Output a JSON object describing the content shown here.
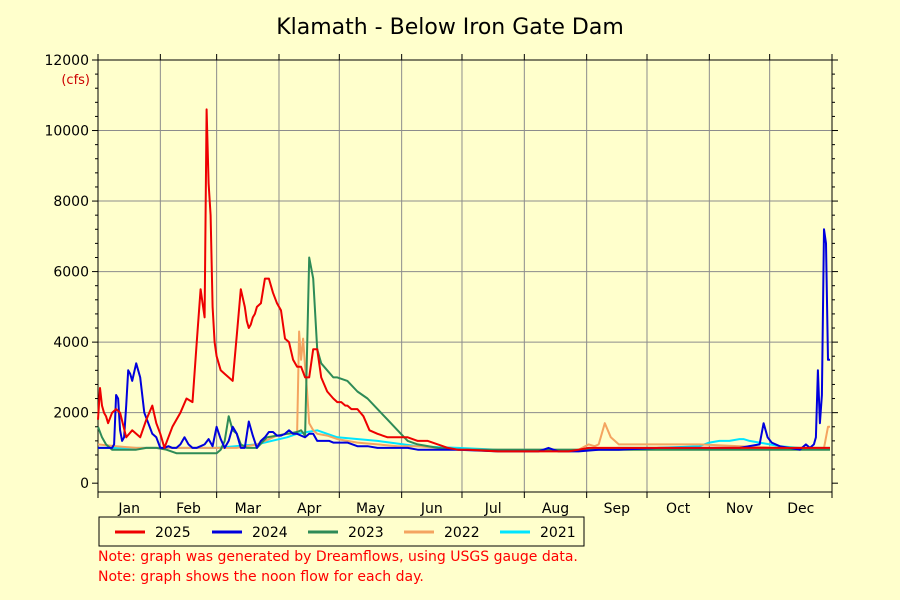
{
  "chart_data": {
    "type": "line",
    "title": "Klamath - Below Iron Gate Dam",
    "ylabel": "(cfs)",
    "xlabel": "",
    "ylim": [
      0,
      12000
    ],
    "yticks": [
      0,
      2000,
      4000,
      6000,
      8000,
      10000,
      12000
    ],
    "xlim": [
      1,
      366
    ],
    "x_unit": "day of year",
    "month_labels": [
      "Jan",
      "Feb",
      "Mar",
      "Apr",
      "May",
      "Jun",
      "Jul",
      "Aug",
      "Sep",
      "Oct",
      "Nov",
      "Dec"
    ],
    "grid": true,
    "legend_position": "bottom",
    "series": [
      {
        "name": "2025",
        "color": "#ee0000",
        "x": [
          1,
          2,
          3,
          4,
          5,
          6,
          8,
          10,
          12,
          15,
          18,
          20,
          22,
          25,
          28,
          30,
          32,
          33,
          34,
          36,
          38,
          40,
          42,
          45,
          48,
          50,
          52,
          54,
          55,
          56,
          57,
          58,
          59,
          60,
          62,
          64,
          66,
          68,
          70,
          72,
          74,
          75,
          76,
          77,
          78,
          79,
          80,
          82,
          84,
          86,
          88,
          90,
          92,
          94,
          96,
          98,
          100,
          102,
          104,
          106,
          108,
          110,
          112,
          115,
          118,
          120,
          122,
          124,
          125,
          127,
          130,
          133,
          136,
          140,
          145,
          150,
          155,
          160,
          165,
          170,
          175,
          180,
          185,
          200,
          220,
          235,
          240,
          245,
          250,
          260,
          280,
          300,
          320,
          340,
          350,
          355,
          358,
          360,
          362,
          364,
          365
        ],
        "y": [
          1800,
          2700,
          2200,
          2000,
          1900,
          1700,
          2000,
          2100,
          2000,
          1300,
          1500,
          1400,
          1300,
          1800,
          2200,
          1700,
          1400,
          1200,
          1000,
          1300,
          1600,
          1800,
          2000,
          2400,
          2300,
          3900,
          5500,
          4700,
          10600,
          8500,
          7600,
          5000,
          4000,
          3600,
          3200,
          3100,
          3000,
          2900,
          4200,
          5500,
          5000,
          4600,
          4400,
          4500,
          4700,
          4800,
          5000,
          5100,
          5800,
          5800,
          5400,
          5100,
          4900,
          4100,
          4000,
          3500,
          3300,
          3300,
          3000,
          3000,
          3800,
          3800,
          3000,
          2600,
          2400,
          2300,
          2300,
          2200,
          2200,
          2100,
          2100,
          1900,
          1500,
          1400,
          1300,
          1300,
          1300,
          1200,
          1200,
          1100,
          1000,
          950,
          950,
          900,
          900,
          900,
          950,
          1000,
          1000,
          1000,
          1000,
          1000,
          1000,
          1000,
          1000,
          1000,
          1000,
          1000,
          1000,
          1000,
          1000
        ]
      },
      {
        "name": "2024",
        "color": "#0000dd",
        "x": [
          1,
          5,
          8,
          9,
          10,
          11,
          12,
          13,
          14,
          15,
          16,
          17,
          18,
          20,
          22,
          24,
          26,
          28,
          30,
          32,
          34,
          36,
          38,
          40,
          42,
          44,
          46,
          48,
          50,
          52,
          54,
          56,
          58,
          60,
          62,
          64,
          66,
          68,
          70,
          72,
          74,
          76,
          78,
          80,
          82,
          84,
          86,
          88,
          90,
          92,
          94,
          96,
          98,
          100,
          102,
          104,
          106,
          108,
          110,
          112,
          114,
          116,
          118,
          120,
          125,
          130,
          135,
          140,
          150,
          155,
          160,
          180,
          200,
          210,
          220,
          225,
          230,
          240,
          250,
          260,
          280,
          300,
          320,
          330,
          332,
          334,
          336,
          340,
          350,
          353,
          355,
          357,
          358,
          359,
          360,
          361,
          362,
          363,
          364,
          365
        ],
        "y": [
          1000,
          1000,
          1000,
          1100,
          2500,
          2400,
          1500,
          1200,
          1300,
          2200,
          3200,
          3100,
          2900,
          3400,
          3000,
          2000,
          1700,
          1400,
          1300,
          1000,
          1000,
          1050,
          1000,
          1000,
          1100,
          1300,
          1100,
          1000,
          1000,
          1050,
          1100,
          1250,
          1050,
          1600,
          1250,
          1000,
          1200,
          1600,
          1400,
          1000,
          1000,
          1750,
          1350,
          1000,
          1200,
          1300,
          1450,
          1450,
          1350,
          1350,
          1400,
          1500,
          1400,
          1400,
          1350,
          1300,
          1400,
          1400,
          1200,
          1200,
          1200,
          1200,
          1150,
          1150,
          1150,
          1050,
          1050,
          1000,
          1000,
          1000,
          950,
          950,
          900,
          900,
          900,
          1000,
          900,
          900,
          950,
          950,
          1000,
          1000,
          1000,
          1100,
          1700,
          1300,
          1150,
          1050,
          950,
          1100,
          1000,
          1100,
          1300,
          3200,
          1700,
          2500,
          7200,
          6800,
          3500,
          3500
        ]
      },
      {
        "name": "2023",
        "color": "#2e8b57",
        "x": [
          1,
          3,
          5,
          8,
          10,
          15,
          20,
          25,
          30,
          35,
          40,
          45,
          50,
          55,
          60,
          62,
          64,
          66,
          68,
          70,
          72,
          75,
          80,
          85,
          90,
          95,
          100,
          102,
          104,
          106,
          108,
          110,
          112,
          115,
          118,
          120,
          125,
          130,
          135,
          140,
          145,
          150,
          155,
          160,
          170,
          180,
          200,
          220,
          240,
          260,
          280,
          300,
          320,
          340,
          355,
          360,
          365
        ],
        "y": [
          1600,
          1300,
          1100,
          950,
          950,
          950,
          950,
          1000,
          1000,
          950,
          850,
          850,
          850,
          850,
          850,
          950,
          1200,
          1900,
          1500,
          1400,
          1100,
          1000,
          1000,
          1300,
          1350,
          1400,
          1450,
          1500,
          1350,
          6400,
          5800,
          3800,
          3400,
          3200,
          3000,
          3000,
          2900,
          2600,
          2400,
          2100,
          1800,
          1500,
          1200,
          1100,
          1000,
          950,
          950,
          950,
          950,
          950,
          950,
          950,
          950,
          950,
          950,
          950,
          950
        ]
      },
      {
        "name": "2022",
        "color": "#f4a460",
        "x": [
          1,
          10,
          20,
          30,
          40,
          50,
          60,
          70,
          80,
          90,
          95,
          98,
          100,
          101,
          102,
          103,
          104,
          105,
          106,
          108,
          110,
          115,
          120,
          130,
          140,
          150,
          160,
          170,
          180,
          200,
          220,
          240,
          245,
          248,
          250,
          253,
          256,
          260,
          280,
          300,
          320,
          340,
          355,
          360,
          362,
          364,
          365
        ],
        "y": [
          1100,
          1050,
          1000,
          1000,
          1000,
          1000,
          1000,
          1000,
          1100,
          1350,
          1400,
          1400,
          1400,
          4300,
          3500,
          4100,
          3300,
          2600,
          1700,
          1500,
          1400,
          1350,
          1250,
          1150,
          1100,
          1050,
          1050,
          1000,
          950,
          950,
          950,
          950,
          1100,
          1050,
          1100,
          1700,
          1300,
          1100,
          1100,
          1100,
          1050,
          1000,
          1000,
          1000,
          1000,
          1600,
          1600
        ]
      },
      {
        "name": "2021",
        "color": "#00e5ff",
        "x": [
          1,
          20,
          40,
          60,
          80,
          95,
          100,
          105,
          110,
          115,
          120,
          140,
          160,
          180,
          200,
          220,
          240,
          260,
          280,
          300,
          305,
          310,
          315,
          320,
          322,
          325,
          330,
          335,
          340,
          350,
          355,
          360,
          365
        ],
        "y": [
          1000,
          1000,
          1000,
          1000,
          1100,
          1300,
          1400,
          1450,
          1500,
          1400,
          1300,
          1200,
          1050,
          1000,
          950,
          950,
          950,
          1000,
          1000,
          1050,
          1150,
          1200,
          1200,
          1250,
          1250,
          1200,
          1150,
          1100,
          1050,
          1000,
          1000,
          1000,
          1000
        ]
      }
    ]
  },
  "notes": [
    "Note: graph was generated by Dreamflows, using USGS gauge data.",
    "Note: graph shows the noon flow for each day."
  ]
}
